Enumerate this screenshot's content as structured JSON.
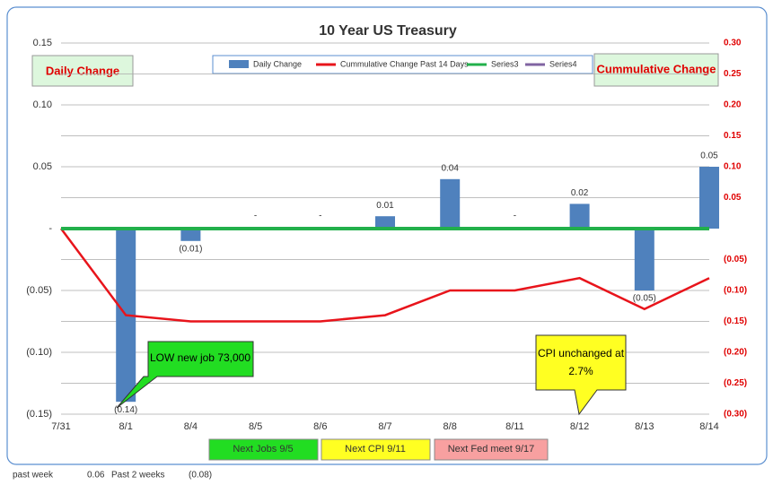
{
  "chart_data": {
    "type": "bar_line",
    "title": "10 Year US Treasury",
    "categories": [
      "7/31",
      "8/1",
      "8/4",
      "8/5",
      "8/6",
      "8/7",
      "8/8",
      "8/11",
      "8/12",
      "8/13",
      "8/14"
    ],
    "ylim": [
      -0.15,
      0.15
    ],
    "yticks": [
      0.15,
      {
        "value": 0.1,
        "label": "0.10"
      },
      0.05,
      {
        "value": 0,
        "label": "-"
      },
      {
        "value": -0.05,
        "label": "(0.05)"
      },
      {
        "value": -0.1,
        "label": "(0.10)"
      },
      {
        "value": -0.15,
        "label": "(0.15)"
      }
    ],
    "y2lim": [
      -0.3,
      0.3
    ],
    "y2ticks": [
      {
        "value": 0.3,
        "label": "0.30"
      },
      0.25,
      {
        "value": 0.2,
        "label": "0.20"
      },
      0.15,
      {
        "value": 0.1,
        "label": "0.10"
      },
      0.05,
      {
        "value": -0.05,
        "label": "(0.05)"
      },
      {
        "value": -0.1,
        "label": "(0.10)"
      },
      {
        "value": -0.15,
        "label": "(0.15)"
      },
      {
        "value": -0.2,
        "label": "(0.20)"
      },
      {
        "value": -0.25,
        "label": "(0.25)"
      },
      {
        "value": -0.3,
        "label": "(0.30)"
      }
    ],
    "grid": true,
    "series": [
      {
        "name": "Daily Change",
        "kind": "bar",
        "color": "#4f81bd",
        "values": [
          null,
          -0.14,
          -0.01,
          0,
          0,
          0.01,
          0.04,
          0,
          0.02,
          -0.05,
          0.05
        ],
        "value_labels": [
          null,
          "(0.14)",
          "(0.01)",
          "-",
          "-",
          "0.01",
          "0.04",
          "-",
          "0.02",
          "(0.05)",
          "0.05"
        ]
      },
      {
        "name": "Cummulative Change Past 14 Days",
        "kind": "line",
        "axis": "y2",
        "color": "#e8141b",
        "values": [
          0,
          -0.14,
          -0.15,
          -0.15,
          -0.15,
          -0.14,
          -0.1,
          -0.1,
          -0.08,
          -0.13,
          -0.08
        ]
      },
      {
        "name": "Series3",
        "kind": "line",
        "axis": "y2",
        "color": "#22b04b",
        "values": [
          0,
          0,
          0,
          0,
          0,
          0,
          0,
          0,
          0,
          0,
          0
        ]
      },
      {
        "name": "Series4",
        "kind": "line",
        "axis": "y2",
        "color": "#8064a2",
        "values": [
          null,
          null,
          null,
          null,
          null,
          null,
          null,
          null,
          null,
          null,
          null
        ]
      }
    ],
    "annotations": {
      "left_axis": "Daily Change",
      "right_axis": "Cummulative Change",
      "jobs": "LOW new job 73,000",
      "cpi": "CPI unchanged at 2.7%",
      "next_jobs": "Next Jobs 9/5",
      "next_cpi": "Next CPI 9/11",
      "next_fed": "Next Fed meet 9/17"
    }
  },
  "footer": {
    "past_week_label": "past week",
    "past_week_value": "0.06",
    "past_2_weeks_label": "Past 2 weeks",
    "past_2_weeks_value": "(0.08)"
  }
}
